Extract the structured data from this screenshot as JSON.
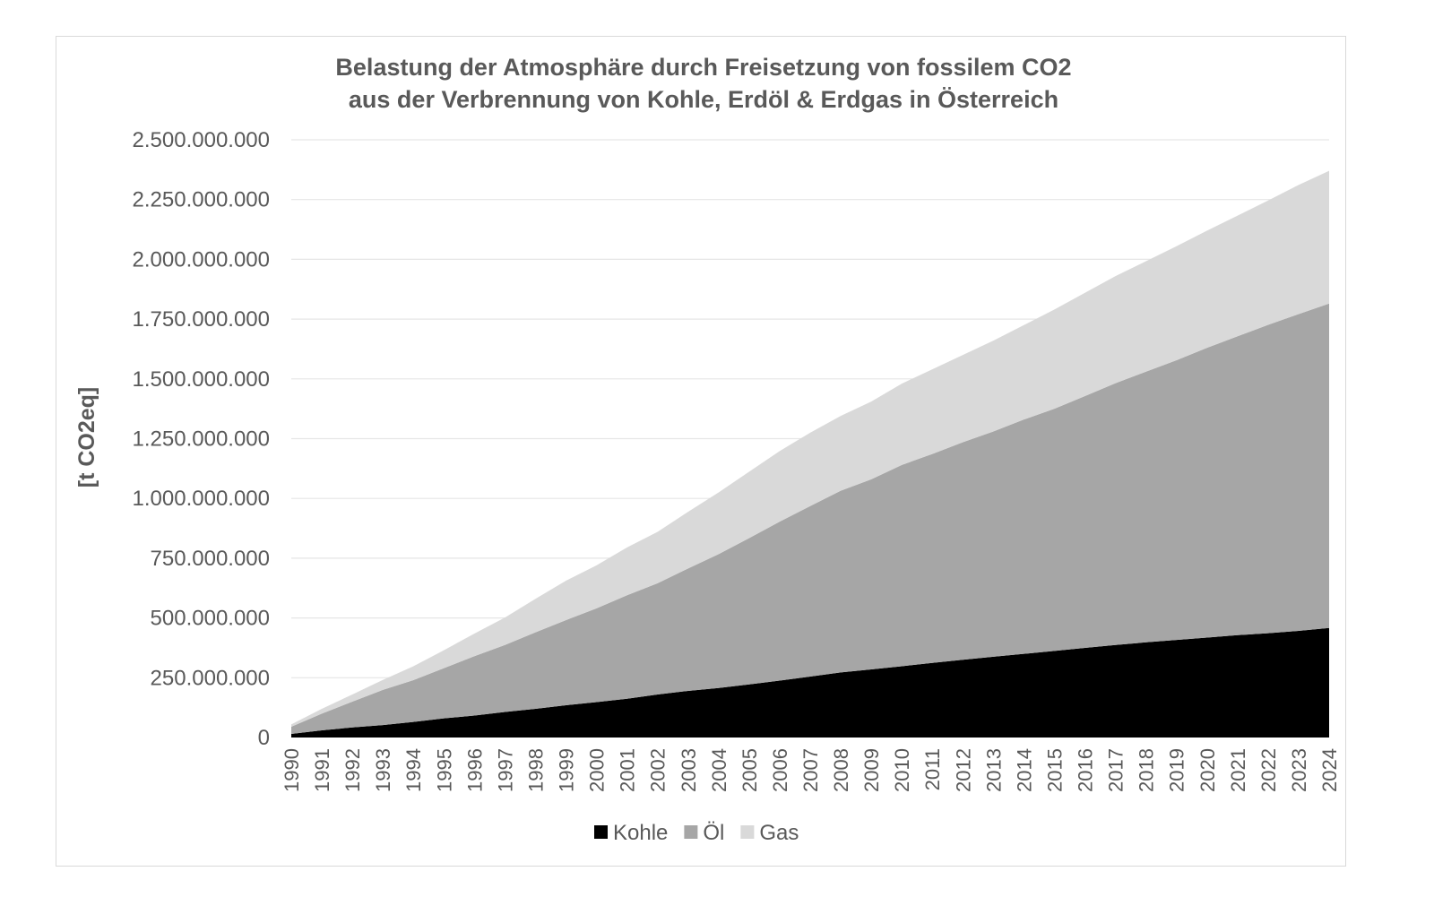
{
  "chart_data": {
    "type": "area",
    "stacked": true,
    "title": [
      "Belastung der Atmosphäre durch Freisetzung von fossilem CO2",
      "aus der Verbrennung von Kohle, Erdöl & Erdgas in Österreich"
    ],
    "ylabel": "[t CO2eq]",
    "xlabel": "",
    "ylim": [
      0,
      2500000000
    ],
    "yticks": [
      0,
      250000000,
      500000000,
      750000000,
      1000000000,
      1250000000,
      1500000000,
      1750000000,
      2000000000,
      2250000000,
      2500000000
    ],
    "ytick_labels": [
      "0",
      "250.000.000",
      "500.000.000",
      "750.000.000",
      "1.000.000.000",
      "1.250.000.000",
      "1.500.000.000",
      "1.750.000.000",
      "2.000.000.000",
      "2.250.000.000",
      "2.500.000.000"
    ],
    "grid": true,
    "legend": "bottom",
    "categories": [
      "1990",
      "1991",
      "1992",
      "1993",
      "1994",
      "1995",
      "1996",
      "1997",
      "1998",
      "1999",
      "2000",
      "2001",
      "2002",
      "2003",
      "2004",
      "2005",
      "2006",
      "2007",
      "2008",
      "2009",
      "2010",
      "2011",
      "2012",
      "2013",
      "2014",
      "2015",
      "2016",
      "2017",
      "2018",
      "2019",
      "2020",
      "2021",
      "2022",
      "2023",
      "2024"
    ],
    "series": [
      {
        "name": "Kohle",
        "color": "#000000",
        "values": [
          15000000,
          30000000,
          42000000,
          52000000,
          65000000,
          80000000,
          92000000,
          107000000,
          120000000,
          135000000,
          148000000,
          162000000,
          180000000,
          195000000,
          207000000,
          222000000,
          238000000,
          255000000,
          272000000,
          285000000,
          298000000,
          312000000,
          325000000,
          338000000,
          350000000,
          362000000,
          375000000,
          387000000,
          398000000,
          408000000,
          418000000,
          428000000,
          436000000,
          446000000,
          458000000
        ]
      },
      {
        "name": "Öl",
        "color": "#a6a6a6",
        "values": [
          30000000,
          70000000,
          108000000,
          147000000,
          175000000,
          210000000,
          248000000,
          280000000,
          320000000,
          356000000,
          392000000,
          433000000,
          465000000,
          512000000,
          560000000,
          612000000,
          665000000,
          713000000,
          760000000,
          795000000,
          842000000,
          874000000,
          910000000,
          942000000,
          980000000,
          1013000000,
          1053000000,
          1095000000,
          1132000000,
          1170000000,
          1212000000,
          1250000000,
          1290000000,
          1325000000,
          1357000000
        ]
      },
      {
        "name": "Gas",
        "color": "#d9d9d9",
        "values": [
          10000000,
          20000000,
          30000000,
          42000000,
          58000000,
          75000000,
          95000000,
          115000000,
          140000000,
          165000000,
          180000000,
          200000000,
          215000000,
          237000000,
          258000000,
          278000000,
          295000000,
          307000000,
          313000000,
          325000000,
          340000000,
          354000000,
          365000000,
          380000000,
          395000000,
          415000000,
          432000000,
          448000000,
          462000000,
          477000000,
          490000000,
          505000000,
          520000000,
          540000000,
          555000000
        ]
      }
    ]
  }
}
